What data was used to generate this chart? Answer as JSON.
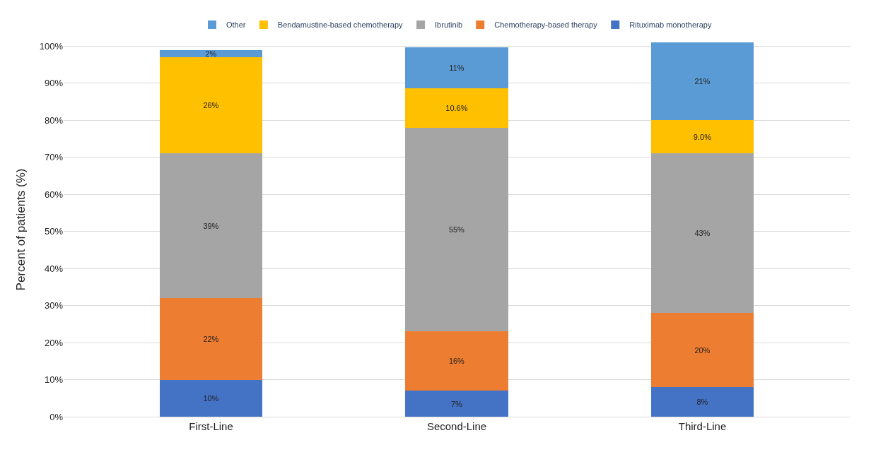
{
  "chart_data": {
    "type": "bar",
    "stacked": true,
    "ylabel": "Percent of patients (%)",
    "categories": [
      "First-Line",
      "Second-Line",
      "Third-Line"
    ],
    "series": [
      {
        "name": "Rituximab monotherapy",
        "color": "#4472c4",
        "values": [
          10,
          7,
          8
        ],
        "value_labels": [
          "10%",
          "7%",
          "8%"
        ]
      },
      {
        "name": "Chemotherapy-based therapy",
        "color": "#ed7d31",
        "values": [
          22,
          16,
          20
        ],
        "value_labels": [
          "22%",
          "16%",
          "20%"
        ]
      },
      {
        "name": "Ibrutinib",
        "color": "#a5a5a5",
        "values": [
          39,
          55,
          43
        ],
        "value_labels": [
          "39%",
          "55%",
          "43%"
        ]
      },
      {
        "name": "Bendamustine-based chemotherapy",
        "color": "#ffc000",
        "values": [
          26,
          10.6,
          9.0
        ],
        "value_labels": [
          "26%",
          "10.6%",
          "9.0%"
        ]
      },
      {
        "name": "Other",
        "color": "#5b9bd5",
        "values": [
          2,
          11,
          21
        ],
        "value_labels": [
          "2%",
          "11%",
          "21%"
        ]
      }
    ],
    "ylim": [
      0,
      101
    ],
    "yticks": [
      {
        "value": 0,
        "label": "0%"
      },
      {
        "value": 10,
        "label": "10%"
      },
      {
        "value": 20,
        "label": "20%"
      },
      {
        "value": 30,
        "label": "30%"
      },
      {
        "value": 40,
        "label": "40%"
      },
      {
        "value": 50,
        "label": "50%"
      },
      {
        "value": 60,
        "label": "60%"
      },
      {
        "value": 70,
        "label": "70%"
      },
      {
        "value": 80,
        "label": "80%"
      },
      {
        "value": 90,
        "label": "90%"
      },
      {
        "value": 100,
        "label": "100%"
      }
    ],
    "grid": "y",
    "legend": "top"
  }
}
